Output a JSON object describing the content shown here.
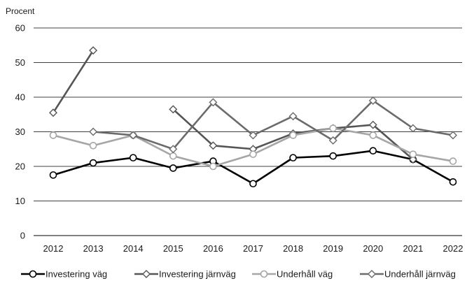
{
  "chart_data": {
    "type": "line",
    "ylabel": "Procent",
    "ylim": [
      0,
      60
    ],
    "yticks": [
      0,
      10,
      20,
      30,
      40,
      50,
      60
    ],
    "categories": [
      "2012",
      "2013",
      "2014",
      "2015",
      "2016",
      "2017",
      "2018",
      "2019",
      "2020",
      "2021",
      "2022"
    ],
    "grid": true,
    "legend_position": "bottom",
    "series": [
      {
        "name": "Investering väg",
        "marker": "circle",
        "color": "#000000",
        "values": [
          17.5,
          21,
          22.5,
          19.5,
          21.5,
          15,
          22.5,
          23,
          24.5,
          22,
          15.5
        ]
      },
      {
        "name": "Investering järnväg",
        "marker": "diamond",
        "color": "#555555",
        "values": [
          35.5,
          53.5,
          null,
          36.5,
          26,
          25,
          29.5,
          31,
          32,
          22,
          null
        ]
      },
      {
        "name": "Underhåll väg",
        "marker": "circle",
        "color": "#a6a6a6",
        "values": [
          29,
          26,
          29,
          23,
          20,
          23.5,
          29,
          31,
          29,
          23.5,
          21.5
        ]
      },
      {
        "name": "Underhåll järnväg",
        "marker": "diamond",
        "color": "#6b6b6b",
        "values": [
          null,
          30,
          29,
          25,
          38.5,
          29,
          34.5,
          27.5,
          39,
          31,
          29
        ]
      }
    ]
  }
}
